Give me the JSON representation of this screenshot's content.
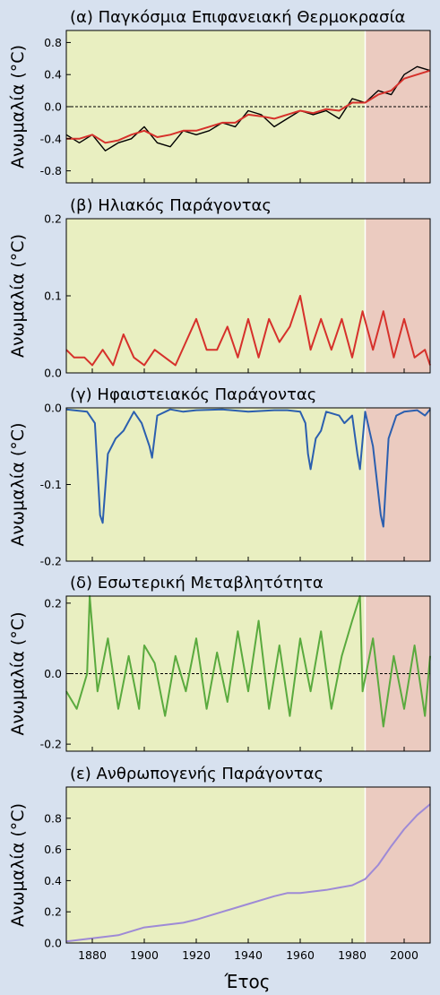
{
  "colors": {
    "pre_period_shade": "#e9efc1",
    "recent_period_shade": "#ebcbc0",
    "observed": "#000000",
    "model_fit": "#d6312b",
    "solar": "#d6312b",
    "volcanic": "#2b5faf",
    "internal": "#5aaa3e",
    "anthropogenic": "#9e8ad6"
  },
  "figure": {
    "xlabel": "Έτος",
    "shading_split_year": 1985,
    "x_range": [
      1870,
      2010
    ],
    "x_ticks": [
      "1880",
      "1900",
      "1920",
      "1940",
      "1960",
      "1980",
      "2000"
    ]
  },
  "chart_data": [
    {
      "type": "line",
      "title": "(α)  Παγκόσμια Επιφανειακή Θερμοκρασία",
      "ylabel": "Ανωμαλία (°C)",
      "ylim": [
        -0.95,
        0.95
      ],
      "yticks": [
        "0.8",
        "0.4",
        "0.0",
        "-0.4",
        "-0.8"
      ],
      "zero_line": true,
      "series": [
        {
          "color_key": "observed",
          "x": [
            1870,
            1875,
            1880,
            1885,
            1890,
            1895,
            1900,
            1905,
            1910,
            1915,
            1920,
            1925,
            1930,
            1935,
            1940,
            1945,
            1950,
            1955,
            1960,
            1965,
            1970,
            1975,
            1980,
            1985,
            1990,
            1995,
            2000,
            2005,
            2010
          ],
          "y": [
            -0.35,
            -0.45,
            -0.35,
            -0.55,
            -0.45,
            -0.4,
            -0.25,
            -0.45,
            -0.5,
            -0.3,
            -0.35,
            -0.3,
            -0.2,
            -0.25,
            -0.05,
            -0.1,
            -0.25,
            -0.15,
            -0.05,
            -0.1,
            -0.05,
            -0.15,
            0.1,
            0.05,
            0.2,
            0.15,
            0.4,
            0.5,
            0.45
          ]
        },
        {
          "color_key": "model_fit",
          "x": [
            1870,
            1875,
            1880,
            1885,
            1890,
            1895,
            1900,
            1905,
            1910,
            1915,
            1920,
            1925,
            1930,
            1935,
            1940,
            1945,
            1950,
            1955,
            1960,
            1965,
            1970,
            1975,
            1980,
            1985,
            1990,
            1995,
            2000,
            2005,
            2010
          ],
          "y": [
            -0.4,
            -0.4,
            -0.35,
            -0.45,
            -0.42,
            -0.35,
            -0.3,
            -0.38,
            -0.35,
            -0.3,
            -0.3,
            -0.25,
            -0.2,
            -0.2,
            -0.1,
            -0.12,
            -0.15,
            -0.1,
            -0.05,
            -0.08,
            -0.03,
            -0.05,
            0.05,
            0.05,
            0.15,
            0.2,
            0.35,
            0.4,
            0.45
          ]
        }
      ]
    },
    {
      "type": "line",
      "title": "(β)  Ηλιακός Παράγοντας",
      "ylabel": "Ανωμαλία (°C)",
      "ylim": [
        0.0,
        0.2
      ],
      "yticks": [
        "0.2",
        "0.1",
        "0.0"
      ],
      "zero_line": false,
      "series": [
        {
          "color_key": "solar",
          "x": [
            1870,
            1873,
            1877,
            1880,
            1884,
            1888,
            1892,
            1896,
            1900,
            1904,
            1908,
            1912,
            1916,
            1920,
            1924,
            1928,
            1932,
            1936,
            1940,
            1944,
            1948,
            1952,
            1956,
            1960,
            1964,
            1968,
            1972,
            1976,
            1980,
            1984,
            1988,
            1992,
            1996,
            2000,
            2004,
            2008,
            2010
          ],
          "y": [
            0.03,
            0.02,
            0.02,
            0.01,
            0.03,
            0.01,
            0.05,
            0.02,
            0.01,
            0.03,
            0.02,
            0.01,
            0.04,
            0.07,
            0.03,
            0.03,
            0.06,
            0.02,
            0.07,
            0.02,
            0.07,
            0.04,
            0.06,
            0.1,
            0.03,
            0.07,
            0.03,
            0.07,
            0.02,
            0.08,
            0.03,
            0.08,
            0.02,
            0.07,
            0.02,
            0.03,
            0.01
          ]
        }
      ]
    },
    {
      "type": "line",
      "title": "(γ)  Ηφαιστειακός Παράγοντας",
      "ylabel": "Ανωμαλία (°C)",
      "ylim": [
        -0.2,
        0.0
      ],
      "yticks": [
        "0.0",
        "-0.1",
        "-0.2"
      ],
      "zero_line": false,
      "series": [
        {
          "color_key": "volcanic",
          "x": [
            1870,
            1878,
            1881,
            1883,
            1884,
            1886,
            1889,
            1892,
            1896,
            1899,
            1902,
            1903,
            1905,
            1910,
            1915,
            1920,
            1930,
            1940,
            1950,
            1955,
            1960,
            1962,
            1963,
            1964,
            1966,
            1968,
            1970,
            1975,
            1977,
            1980,
            1982,
            1983,
            1985,
            1988,
            1991,
            1992,
            1994,
            1997,
            2000,
            2005,
            2008,
            2010
          ],
          "y": [
            -0.002,
            -0.005,
            -0.02,
            -0.14,
            -0.15,
            -0.06,
            -0.04,
            -0.03,
            -0.005,
            -0.02,
            -0.05,
            -0.065,
            -0.01,
            -0.002,
            -0.005,
            -0.003,
            -0.002,
            -0.005,
            -0.003,
            -0.003,
            -0.005,
            -0.02,
            -0.06,
            -0.08,
            -0.04,
            -0.03,
            -0.005,
            -0.01,
            -0.02,
            -0.01,
            -0.06,
            -0.08,
            -0.005,
            -0.05,
            -0.14,
            -0.155,
            -0.04,
            -0.01,
            -0.005,
            -0.003,
            -0.01,
            -0.002
          ]
        }
      ]
    },
    {
      "type": "line",
      "title": "(δ)  Εσωτερική Μεταβλητότητα",
      "ylabel": "Ανωμαλία (°C)",
      "ylim": [
        -0.22,
        0.22
      ],
      "yticks": [
        "0.2",
        "0.0",
        "-0.2"
      ],
      "zero_line": true,
      "series": [
        {
          "color_key": "internal",
          "x": [
            1870,
            1874,
            1878,
            1879,
            1882,
            1886,
            1890,
            1894,
            1898,
            1900,
            1904,
            1908,
            1912,
            1916,
            1920,
            1924,
            1928,
            1932,
            1936,
            1940,
            1944,
            1948,
            1952,
            1956,
            1960,
            1964,
            1968,
            1972,
            1976,
            1980,
            1983,
            1984,
            1988,
            1992,
            1996,
            2000,
            2004,
            2008,
            2010
          ],
          "y": [
            -0.05,
            -0.1,
            0.0,
            0.22,
            -0.05,
            0.1,
            -0.1,
            0.05,
            -0.1,
            0.08,
            0.03,
            -0.12,
            0.05,
            -0.05,
            0.1,
            -0.1,
            0.06,
            -0.08,
            0.12,
            -0.05,
            0.15,
            -0.1,
            0.08,
            -0.12,
            0.1,
            -0.05,
            0.12,
            -0.1,
            0.05,
            0.15,
            0.22,
            -0.05,
            0.1,
            -0.15,
            0.05,
            -0.1,
            0.08,
            -0.12,
            0.05
          ]
        }
      ]
    },
    {
      "type": "line",
      "title": "(ε)  Ανθρωπογενής Παράγοντας",
      "ylabel": "Ανωμαλία (°C)",
      "ylim": [
        0.0,
        1.0
      ],
      "yticks": [
        "0.8",
        "0.6",
        "0.4",
        "0.2",
        "0.0"
      ],
      "zero_line": false,
      "series": [
        {
          "color_key": "anthropogenic",
          "x": [
            1870,
            1880,
            1890,
            1900,
            1910,
            1915,
            1920,
            1930,
            1940,
            1950,
            1955,
            1960,
            1970,
            1980,
            1985,
            1990,
            1995,
            2000,
            2005,
            2010
          ],
          "y": [
            0.01,
            0.03,
            0.05,
            0.1,
            0.12,
            0.13,
            0.15,
            0.2,
            0.25,
            0.3,
            0.32,
            0.32,
            0.34,
            0.37,
            0.41,
            0.5,
            0.62,
            0.73,
            0.82,
            0.89
          ]
        }
      ]
    }
  ]
}
